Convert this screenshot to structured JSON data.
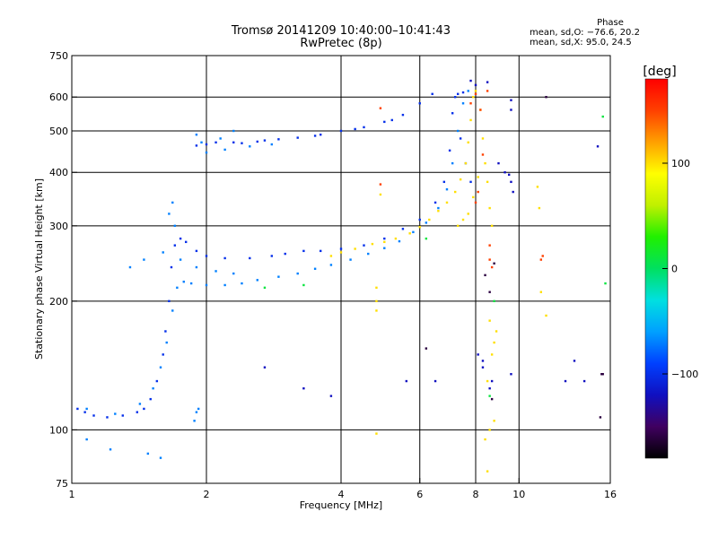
{
  "header": {
    "title": "Tromsø 20141209 10:40:00–10:41:43",
    "subtitle": "RwPretec (8p)"
  },
  "phase_stats": {
    "heading": "Phase",
    "line1": "mean, sd,O: −76.6, 20.2",
    "line2": "mean, sd,X: 95.0, 24.5"
  },
  "colorbar": {
    "unit": "[deg]",
    "min": -180,
    "max": 180,
    "ticks": [
      {
        "value": 100,
        "label": "100"
      },
      {
        "value": 0,
        "label": "0"
      },
      {
        "value": -100,
        "label": "−100"
      }
    ],
    "stops": [
      "#000000",
      "#400060",
      "#1010c0",
      "#0040ff",
      "#00a0ff",
      "#00e0e0",
      "#00e060",
      "#20f000",
      "#c0f000",
      "#ffff00",
      "#ffa000",
      "#ff4000",
      "#ff0000"
    ]
  },
  "chart_data": {
    "type": "scatter",
    "xlabel": "Frequency [MHz]",
    "ylabel": "Stationary phase Virtual Height [km]",
    "x_scale": "log",
    "y_scale": "log",
    "xlim": [
      1,
      16
    ],
    "ylim": [
      75,
      750
    ],
    "x_ticks": [
      1,
      2,
      4,
      6,
      8,
      10,
      16
    ],
    "y_ticks": [
      75,
      100,
      200,
      300,
      400,
      500,
      600,
      750
    ],
    "grid_x": [
      2,
      4,
      6,
      8,
      10
    ],
    "grid_y": [
      100,
      200,
      300,
      400,
      500,
      600
    ],
    "series": [
      {
        "phase": -100,
        "points": [
          [
            1.03,
            112
          ],
          [
            1.07,
            110
          ],
          [
            1.12,
            108
          ],
          [
            1.2,
            107
          ],
          [
            1.3,
            108
          ],
          [
            1.4,
            110
          ],
          [
            1.45,
            112
          ],
          [
            1.5,
            118
          ],
          [
            1.55,
            130
          ],
          [
            1.6,
            150
          ],
          [
            1.62,
            170
          ],
          [
            1.65,
            200
          ],
          [
            1.67,
            240
          ],
          [
            1.7,
            270
          ],
          [
            1.75,
            280
          ],
          [
            1.8,
            275
          ],
          [
            1.9,
            262
          ],
          [
            2.0,
            255
          ],
          [
            2.2,
            252
          ],
          [
            2.5,
            252
          ],
          [
            2.8,
            255
          ],
          [
            3.0,
            258
          ],
          [
            3.3,
            262
          ],
          [
            3.6,
            262
          ],
          [
            4.0,
            265
          ],
          [
            4.5,
            270
          ],
          [
            5.0,
            280
          ],
          [
            5.5,
            295
          ],
          [
            6.0,
            310
          ],
          [
            6.5,
            340
          ],
          [
            6.8,
            380
          ],
          [
            7.0,
            450
          ],
          [
            7.1,
            550
          ],
          [
            7.2,
            600
          ],
          [
            7.3,
            610
          ],
          [
            7.5,
            615
          ],
          [
            6.4,
            610
          ],
          [
            6.0,
            580
          ],
          [
            5.5,
            545
          ],
          [
            5.0,
            525
          ],
          [
            4.5,
            510
          ],
          [
            4.0,
            500
          ],
          [
            3.6,
            490
          ],
          [
            3.2,
            482
          ],
          [
            2.9,
            478
          ],
          [
            2.6,
            472
          ],
          [
            2.3,
            470
          ],
          [
            2.0,
            465
          ],
          [
            1.9,
            462
          ],
          [
            2.1,
            470
          ],
          [
            2.4,
            468
          ],
          [
            2.7,
            475
          ],
          [
            3.5,
            487
          ],
          [
            4.3,
            505
          ],
          [
            5.2,
            530
          ],
          [
            7.4,
            480
          ],
          [
            7.6,
            420
          ],
          [
            7.8,
            380
          ]
        ]
      },
      {
        "phase": -70,
        "points": [
          [
            1.08,
            112
          ],
          [
            1.25,
            109
          ],
          [
            1.42,
            115
          ],
          [
            1.52,
            125
          ],
          [
            1.58,
            140
          ],
          [
            1.63,
            160
          ],
          [
            1.68,
            190
          ],
          [
            1.72,
            215
          ],
          [
            1.78,
            222
          ],
          [
            1.85,
            220
          ],
          [
            2.0,
            218
          ],
          [
            2.2,
            218
          ],
          [
            2.4,
            220
          ],
          [
            2.6,
            224
          ],
          [
            2.9,
            228
          ],
          [
            3.2,
            232
          ],
          [
            3.5,
            238
          ],
          [
            3.8,
            243
          ],
          [
            4.2,
            250
          ],
          [
            4.6,
            258
          ],
          [
            5.0,
            266
          ],
          [
            5.4,
            276
          ],
          [
            5.8,
            290
          ],
          [
            6.2,
            305
          ],
          [
            6.6,
            330
          ],
          [
            6.9,
            365
          ],
          [
            7.1,
            420
          ],
          [
            7.3,
            500
          ],
          [
            7.5,
            580
          ],
          [
            7.7,
            620
          ],
          [
            1.35,
            240
          ],
          [
            1.45,
            250
          ],
          [
            1.6,
            260
          ],
          [
            1.75,
            250
          ],
          [
            1.9,
            240
          ],
          [
            2.1,
            235
          ],
          [
            2.3,
            232
          ],
          [
            1.7,
            300
          ],
          [
            1.65,
            320
          ],
          [
            1.68,
            340
          ],
          [
            2.0,
            445
          ],
          [
            1.95,
            470
          ],
          [
            2.2,
            452
          ],
          [
            2.5,
            460
          ],
          [
            2.8,
            465
          ],
          [
            2.15,
            480
          ],
          [
            2.3,
            500
          ],
          [
            1.9,
            490
          ],
          [
            1.08,
            95
          ],
          [
            1.22,
            90
          ],
          [
            1.48,
            88
          ],
          [
            1.58,
            86
          ],
          [
            1.88,
            105
          ],
          [
            1.9,
            110
          ],
          [
            1.92,
            112
          ]
        ]
      },
      {
        "phase": 100,
        "points": [
          [
            3.8,
            255
          ],
          [
            4.0,
            260
          ],
          [
            4.3,
            265
          ],
          [
            4.7,
            272
          ],
          [
            5.0,
            275
          ],
          [
            5.3,
            280
          ],
          [
            5.7,
            288
          ],
          [
            6.0,
            298
          ],
          [
            6.3,
            310
          ],
          [
            6.6,
            325
          ],
          [
            6.9,
            340
          ],
          [
            7.2,
            360
          ],
          [
            7.4,
            385
          ],
          [
            7.6,
            420
          ],
          [
            7.7,
            470
          ],
          [
            7.8,
            530
          ],
          [
            7.9,
            600
          ],
          [
            8.0,
            620
          ],
          [
            8.2,
            560
          ],
          [
            8.3,
            480
          ],
          [
            8.4,
            420
          ],
          [
            8.1,
            390
          ],
          [
            7.9,
            350
          ],
          [
            7.7,
            320
          ],
          [
            7.5,
            310
          ],
          [
            7.3,
            300
          ],
          [
            8.5,
            380
          ],
          [
            8.6,
            330
          ],
          [
            8.7,
            300
          ],
          [
            4.8,
            200
          ],
          [
            4.8,
            190
          ],
          [
            4.8,
            215
          ],
          [
            4.8,
            98
          ],
          [
            8.6,
            100
          ],
          [
            8.8,
            105
          ],
          [
            8.5,
            130
          ],
          [
            8.7,
            150
          ],
          [
            8.8,
            160
          ],
          [
            8.9,
            170
          ],
          [
            8.6,
            180
          ],
          [
            11.5,
            185
          ],
          [
            11.2,
            210
          ],
          [
            11.0,
            370
          ],
          [
            11.1,
            330
          ],
          [
            8.4,
            95
          ],
          [
            8.5,
            80
          ],
          [
            4.9,
            355
          ]
        ]
      },
      {
        "phase": 150,
        "points": [
          [
            4.9,
            565
          ],
          [
            8.0,
            610
          ],
          [
            7.8,
            580
          ],
          [
            8.3,
            440
          ],
          [
            8.6,
            270
          ],
          [
            8.7,
            240
          ],
          [
            8.6,
            250
          ],
          [
            11.2,
            250
          ],
          [
            11.3,
            255
          ],
          [
            8.5,
            620
          ],
          [
            8.2,
            560
          ],
          [
            4.9,
            375
          ],
          [
            8.1,
            360
          ],
          [
            8.0,
            340
          ]
        ]
      },
      {
        "phase": 10,
        "points": [
          [
            2.7,
            215
          ],
          [
            3.3,
            218
          ],
          [
            15.4,
            540
          ],
          [
            15.6,
            220
          ],
          [
            6.2,
            280
          ],
          [
            8.8,
            200
          ],
          [
            8.6,
            120
          ]
        ]
      },
      {
        "phase": -160,
        "points": [
          [
            6.2,
            155
          ],
          [
            8.6,
            210
          ],
          [
            8.4,
            230
          ],
          [
            8.8,
            245
          ],
          [
            11.5,
            600
          ],
          [
            8.7,
            118
          ],
          [
            15.4,
            135
          ],
          [
            15.2,
            107
          ],
          [
            15.3,
            135
          ]
        ]
      },
      {
        "phase": -120,
        "points": [
          [
            7.8,
            655
          ],
          [
            8.0,
            640
          ],
          [
            8.5,
            650
          ],
          [
            9.7,
            360
          ],
          [
            9.6,
            380
          ],
          [
            9.5,
            395
          ],
          [
            9.3,
            400
          ],
          [
            9.0,
            420
          ],
          [
            12.7,
            130
          ],
          [
            14.0,
            130
          ],
          [
            13.3,
            145
          ],
          [
            15.0,
            460
          ],
          [
            9.6,
            560
          ],
          [
            9.6,
            590
          ],
          [
            3.3,
            125
          ],
          [
            2.7,
            140
          ],
          [
            3.8,
            120
          ],
          [
            5.6,
            130
          ],
          [
            8.6,
            125
          ],
          [
            8.7,
            130
          ],
          [
            8.3,
            140
          ],
          [
            8.3,
            145
          ],
          [
            8.1,
            150
          ],
          [
            9.6,
            135
          ],
          [
            6.5,
            130
          ]
        ]
      }
    ]
  }
}
